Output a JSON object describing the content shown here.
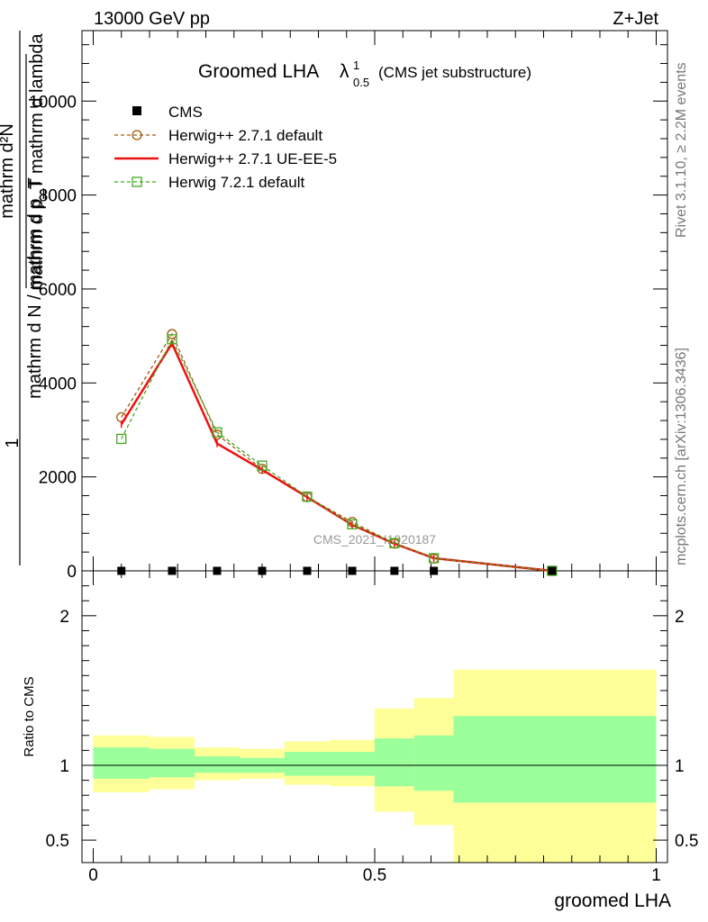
{
  "header": {
    "energy_label": "13000 GeV pp",
    "process_label": "Z+Jet"
  },
  "side": {
    "rivet_label": "Rivet 3.1.10, ≥ 2.2M events",
    "site_label": "mcplots.cern.ch [arXiv:1306.3436]"
  },
  "watermark": "CMS_2021_I1920187",
  "title": {
    "main": "Groomed LHA",
    "lambda": "λ",
    "sup": "1",
    "sub": "0.5",
    "paren": "(CMS jet substructure)"
  },
  "ylabel": {
    "numerator": "1",
    "fraction_top": "mathrm d²N",
    "fraction_top_sub": "mathrm d p_T mathrm d lambda",
    "fraction_bottom": "mathrm d N / mathrm d p_T",
    "ratio": "Ratio to CMS"
  },
  "colors": {
    "herwig_default": "#a05a0c",
    "herwig_ueee5": "#ee1111",
    "herwig7": "#44aa22",
    "band_inner": "#9bff9b",
    "band_outer": "#ffff99"
  },
  "chart_data": {
    "type": "line",
    "xlabel": "groomed LHA",
    "ylabel": "1 / (mathrm d N / mathrm d p_T) · mathrm d²N / (mathrm d p_T mathrm d lambda)",
    "xlim": [
      -0.02,
      1.02
    ],
    "main_ylim": [
      0,
      11500
    ],
    "main_yticks": [
      {
        "v": 0,
        "label": "0"
      },
      {
        "v": 2000,
        "label": "2000"
      },
      {
        "v": 4000,
        "label": "4000"
      },
      {
        "v": 6000,
        "label": "6000"
      },
      {
        "v": 8000,
        "label": "8000"
      },
      {
        "v": 10000,
        "label": "10000"
      }
    ],
    "x_ticks": [
      {
        "v": 0,
        "label": "0"
      },
      {
        "v": 0.5,
        "label": "0.5"
      },
      {
        "v": 1,
        "label": "1"
      }
    ],
    "ratio_ylim": [
      0.35,
      2.3
    ],
    "ratio_yticks": [
      {
        "v": 0.5,
        "label": "0.5"
      },
      {
        "v": 1,
        "label": "1"
      },
      {
        "v": 2,
        "label": "2"
      }
    ],
    "cms": {
      "name": "CMS",
      "x": [
        0.05,
        0.14,
        0.22,
        0.3,
        0.38,
        0.46,
        0.535,
        0.605,
        0.815
      ],
      "y": [
        0,
        0,
        0,
        0,
        0,
        0,
        0,
        0,
        0
      ]
    },
    "series": [
      {
        "name": "Herwig++ 2.7.1 default",
        "key": "herwig_default",
        "style": "dashed-circle",
        "x": [
          0.05,
          0.14,
          0.22,
          0.3,
          0.38,
          0.46,
          0.535,
          0.605,
          0.815
        ],
        "y": [
          3270,
          5040,
          2900,
          2170,
          1570,
          1040,
          580,
          260,
          0
        ]
      },
      {
        "name": "Herwig++ 2.7.1 UE-EE-5",
        "key": "herwig_ueee5",
        "style": "solid",
        "x": [
          0.05,
          0.14,
          0.22,
          0.3,
          0.38,
          0.46,
          0.535,
          0.605,
          0.815
        ],
        "y": [
          3120,
          4840,
          2710,
          2150,
          1570,
          980,
          580,
          270,
          0
        ]
      },
      {
        "name": "Herwig 7.2.1 default",
        "key": "herwig7",
        "style": "dashed-square",
        "x": [
          0.05,
          0.14,
          0.22,
          0.3,
          0.38,
          0.46,
          0.535,
          0.605,
          0.815
        ],
        "y": [
          2810,
          4930,
          2950,
          2240,
          1580,
          990,
          590,
          270,
          0
        ]
      }
    ],
    "ratio_bands": [
      {
        "x0": 0.0,
        "x1": 0.1,
        "inner": [
          0.91,
          1.12
        ],
        "outer": [
          0.82,
          1.2
        ]
      },
      {
        "x0": 0.1,
        "x1": 0.18,
        "inner": [
          0.92,
          1.11
        ],
        "outer": [
          0.84,
          1.19
        ]
      },
      {
        "x0": 0.18,
        "x1": 0.26,
        "inner": [
          0.95,
          1.06
        ],
        "outer": [
          0.9,
          1.12
        ]
      },
      {
        "x0": 0.26,
        "x1": 0.34,
        "inner": [
          0.95,
          1.05
        ],
        "outer": [
          0.91,
          1.11
        ]
      },
      {
        "x0": 0.34,
        "x1": 0.42,
        "inner": [
          0.93,
          1.09
        ],
        "outer": [
          0.87,
          1.16
        ]
      },
      {
        "x0": 0.42,
        "x1": 0.5,
        "inner": [
          0.93,
          1.09
        ],
        "outer": [
          0.86,
          1.17
        ]
      },
      {
        "x0": 0.5,
        "x1": 0.57,
        "inner": [
          0.86,
          1.18
        ],
        "outer": [
          0.69,
          1.38
        ]
      },
      {
        "x0": 0.57,
        "x1": 0.64,
        "inner": [
          0.83,
          1.2
        ],
        "outer": [
          0.6,
          1.45
        ]
      },
      {
        "x0": 0.64,
        "x1": 1.0,
        "inner": [
          0.75,
          1.33
        ],
        "outer": [
          0.35,
          1.64
        ]
      }
    ]
  }
}
